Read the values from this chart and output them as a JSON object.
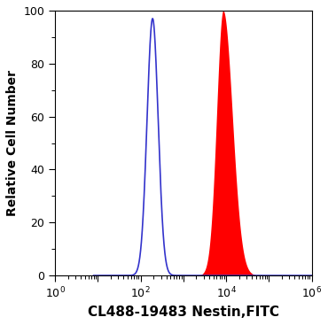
{
  "title": "",
  "xlabel": "CL488-19483 Nestin,FITC",
  "ylabel": "Relative Cell Number",
  "xlim": [
    10,
    1000000
  ],
  "ylim": [
    0,
    100
  ],
  "yticks": [
    0,
    20,
    40,
    60,
    80,
    100
  ],
  "blue_peak_log": 2.28,
  "blue_sigma": 0.13,
  "blue_peak_height": 97,
  "blue_color": "#3333cc",
  "red_peak_log": 3.93,
  "red_sigma": 0.18,
  "red_peak_height": 100,
  "red_color": "#ff0000",
  "bg_color": "#ffffff",
  "plot_bg_color": "#ffffff",
  "xlabel_fontsize": 11,
  "ylabel_fontsize": 10,
  "tick_fontsize": 9
}
